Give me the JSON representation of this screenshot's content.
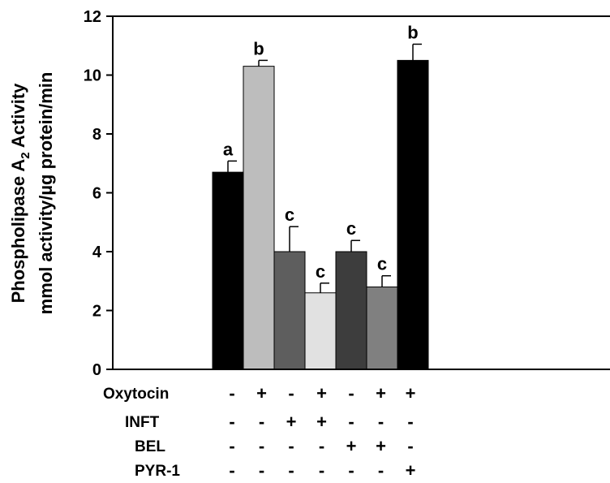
{
  "chart_data": {
    "type": "bar",
    "ylabel_line1_main": "Phospholipase A",
    "ylabel_line1_sub": "2",
    "ylabel_line1_tail": " Activity",
    "ylabel_line2": "mmol activity/µg protein/min",
    "ylim": [
      0,
      12
    ],
    "yticks": [
      0,
      2,
      4,
      6,
      8,
      10,
      12
    ],
    "grid": false,
    "legend": "none",
    "bars": [
      {
        "value": 6.7,
        "error": 0.38,
        "letter": "a",
        "color": "#000000"
      },
      {
        "value": 10.3,
        "error": 0.2,
        "letter": "b",
        "color": "#bdbdbd"
      },
      {
        "value": 4.0,
        "error": 0.85,
        "letter": "c",
        "color": "#5e5e5e"
      },
      {
        "value": 2.6,
        "error": 0.33,
        "letter": "c",
        "color": "#e1e1e1"
      },
      {
        "value": 4.0,
        "error": 0.38,
        "letter": "c",
        "color": "#3d3d3d"
      },
      {
        "value": 2.8,
        "error": 0.38,
        "letter": "c",
        "color": "#808080"
      },
      {
        "value": 10.5,
        "error": 0.55,
        "letter": "b",
        "color": "#000000"
      }
    ],
    "treatments": [
      {
        "name": "Oxytocin",
        "signs": [
          "-",
          "+",
          "-",
          "+",
          "-",
          "+",
          "+"
        ]
      },
      {
        "name": "INFT",
        "signs": [
          "-",
          "-",
          "+",
          "+",
          "-",
          "-",
          "-"
        ]
      },
      {
        "name": "BEL",
        "signs": [
          "-",
          "-",
          "-",
          "-",
          "+",
          "+",
          "-"
        ]
      },
      {
        "name": "PYR-1",
        "signs": [
          "-",
          "-",
          "-",
          "-",
          "-",
          "-",
          "+"
        ]
      }
    ]
  }
}
